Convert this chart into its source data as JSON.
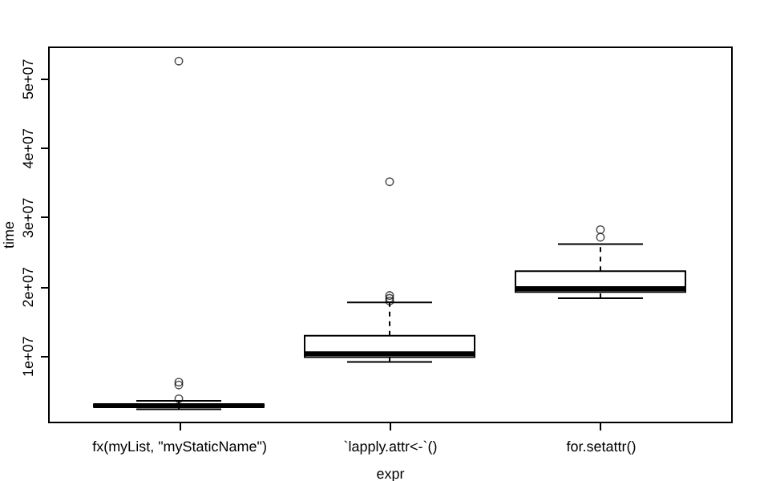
{
  "chart_data": {
    "type": "box",
    "xlabel": "expr",
    "ylabel": "time",
    "categories": [
      "fx(myList, \"myStaticName\")",
      "`lapply.attr<-`()",
      "for.setattr()"
    ],
    "boxes": [
      {
        "low": 2300000,
        "q1": 2600000,
        "median": 2800000,
        "q3": 3000000,
        "high": 3500000,
        "outliers": [
          52500000,
          6200000,
          5800000,
          3800000
        ]
      },
      {
        "low": 9100000,
        "q1": 9800000,
        "median": 10300000,
        "q3": 12900000,
        "high": 17700000,
        "outliers": [
          35100000,
          18700000,
          18300000,
          17900000
        ]
      },
      {
        "low": 18300000,
        "q1": 19200000,
        "median": 19700000,
        "q3": 22200000,
        "high": 26100000,
        "outliers": [
          28200000,
          27100000
        ]
      }
    ],
    "ylim": [
      500000,
      54600000
    ],
    "yticks": [
      {
        "value": 10000000,
        "label": "1e+07"
      },
      {
        "value": 20000000,
        "label": "2e+07"
      },
      {
        "value": 30000000,
        "label": "3e+07"
      },
      {
        "value": 40000000,
        "label": "4e+07"
      },
      {
        "value": 50000000,
        "label": "5e+07"
      }
    ],
    "grid": false
  }
}
